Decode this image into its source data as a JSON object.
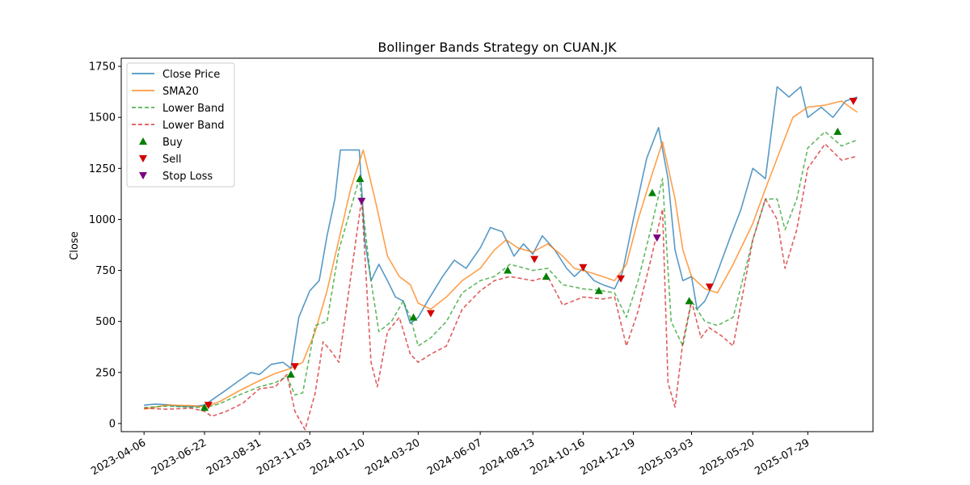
{
  "chart_data": {
    "type": "line",
    "title": "Bollinger Bands Strategy on CUAN.JK",
    "xlabel": "",
    "ylabel": "Close",
    "x_ticks": [
      "2023-04-06",
      "2023-06-22",
      "2023-08-31",
      "2023-11-03",
      "2024-01-10",
      "2024-03-20",
      "2024-06-07",
      "2024-08-13",
      "2024-10-16",
      "2024-12-19",
      "2025-03-03",
      "2025-05-20",
      "2025-07-29"
    ],
    "y_ticks": [
      0,
      250,
      500,
      750,
      1000,
      1250,
      1500,
      1750
    ],
    "xlim": [
      "2023-03-08",
      "2025-10-20"
    ],
    "ylim": [
      -40,
      1790
    ],
    "grid": false,
    "legend_position": "top-left",
    "series": [
      {
        "name": "Close Price",
        "color": "#1f77b4",
        "style": "solid",
        "points": [
          [
            "2023-04-06",
            90
          ],
          [
            "2023-04-20",
            95
          ],
          [
            "2023-05-05",
            92
          ],
          [
            "2023-05-20",
            85
          ],
          [
            "2023-06-05",
            82
          ],
          [
            "2023-06-22",
            90
          ],
          [
            "2023-07-05",
            125
          ],
          [
            "2023-07-20",
            165
          ],
          [
            "2023-08-05",
            210
          ],
          [
            "2023-08-20",
            250
          ],
          [
            "2023-08-31",
            240
          ],
          [
            "2023-09-15",
            290
          ],
          [
            "2023-09-30",
            300
          ],
          [
            "2023-10-10",
            270
          ],
          [
            "2023-10-20",
            520
          ],
          [
            "2023-11-03",
            650
          ],
          [
            "2023-11-15",
            700
          ],
          [
            "2023-11-25",
            920
          ],
          [
            "2023-12-05",
            1100
          ],
          [
            "2023-12-12",
            1340
          ],
          [
            "2024-01-05",
            1340
          ],
          [
            "2024-01-12",
            900
          ],
          [
            "2024-01-20",
            700
          ],
          [
            "2024-01-30",
            780
          ],
          [
            "2024-02-10",
            700
          ],
          [
            "2024-02-20",
            620
          ],
          [
            "2024-03-01",
            600
          ],
          [
            "2024-03-10",
            490
          ],
          [
            "2024-03-20",
            520
          ],
          [
            "2024-04-01",
            600
          ],
          [
            "2024-04-20",
            720
          ],
          [
            "2024-05-05",
            800
          ],
          [
            "2024-05-20",
            760
          ],
          [
            "2024-06-07",
            860
          ],
          [
            "2024-06-20",
            960
          ],
          [
            "2024-07-05",
            940
          ],
          [
            "2024-07-20",
            820
          ],
          [
            "2024-08-01",
            880
          ],
          [
            "2024-08-13",
            830
          ],
          [
            "2024-08-25",
            920
          ],
          [
            "2024-09-10",
            850
          ],
          [
            "2024-09-25",
            760
          ],
          [
            "2024-10-05",
            720
          ],
          [
            "2024-10-16",
            760
          ],
          [
            "2024-10-30",
            700
          ],
          [
            "2024-11-10",
            680
          ],
          [
            "2024-11-25",
            660
          ],
          [
            "2024-12-05",
            740
          ],
          [
            "2024-12-19",
            1000
          ],
          [
            "2025-01-05",
            1300
          ],
          [
            "2025-01-20",
            1450
          ],
          [
            "2025-02-01",
            1200
          ],
          [
            "2025-02-10",
            850
          ],
          [
            "2025-02-20",
            700
          ],
          [
            "2025-03-03",
            720
          ],
          [
            "2025-03-10",
            560
          ],
          [
            "2025-03-20",
            600
          ],
          [
            "2025-04-01",
            700
          ],
          [
            "2025-04-20",
            900
          ],
          [
            "2025-05-05",
            1050
          ],
          [
            "2025-05-20",
            1250
          ],
          [
            "2025-06-05",
            1200
          ],
          [
            "2025-06-20",
            1650
          ],
          [
            "2025-07-05",
            1600
          ],
          [
            "2025-07-20",
            1650
          ],
          [
            "2025-07-29",
            1500
          ],
          [
            "2025-08-15",
            1550
          ],
          [
            "2025-08-30",
            1500
          ],
          [
            "2025-09-15",
            1580
          ],
          [
            "2025-09-30",
            1600
          ]
        ]
      },
      {
        "name": "SMA20",
        "color": "#ff7f0e",
        "style": "solid",
        "points": [
          [
            "2023-04-06",
            70
          ],
          [
            "2023-05-05",
            90
          ],
          [
            "2023-06-05",
            88
          ],
          [
            "2023-06-22",
            82
          ],
          [
            "2023-07-10",
            105
          ],
          [
            "2023-08-05",
            160
          ],
          [
            "2023-08-31",
            210
          ],
          [
            "2023-09-20",
            245
          ],
          [
            "2023-10-10",
            270
          ],
          [
            "2023-10-25",
            300
          ],
          [
            "2023-11-10",
            450
          ],
          [
            "2023-11-25",
            650
          ],
          [
            "2023-12-10",
            900
          ],
          [
            "2023-12-25",
            1150
          ],
          [
            "2024-01-10",
            1340
          ],
          [
            "2024-01-25",
            1100
          ],
          [
            "2024-02-10",
            820
          ],
          [
            "2024-02-25",
            720
          ],
          [
            "2024-03-10",
            680
          ],
          [
            "2024-03-20",
            590
          ],
          [
            "2024-04-05",
            560
          ],
          [
            "2024-04-25",
            620
          ],
          [
            "2024-05-15",
            700
          ],
          [
            "2024-06-07",
            760
          ],
          [
            "2024-06-25",
            850
          ],
          [
            "2024-07-10",
            900
          ],
          [
            "2024-07-25",
            860
          ],
          [
            "2024-08-13",
            840
          ],
          [
            "2024-09-01",
            880
          ],
          [
            "2024-09-20",
            820
          ],
          [
            "2024-10-05",
            760
          ],
          [
            "2024-10-25",
            740
          ],
          [
            "2024-11-10",
            720
          ],
          [
            "2024-11-25",
            700
          ],
          [
            "2024-12-10",
            780
          ],
          [
            "2024-12-25",
            1000
          ],
          [
            "2025-01-10",
            1200
          ],
          [
            "2025-01-25",
            1380
          ],
          [
            "2025-02-10",
            1100
          ],
          [
            "2025-02-20",
            850
          ],
          [
            "2025-03-03",
            720
          ],
          [
            "2025-03-20",
            660
          ],
          [
            "2025-04-05",
            640
          ],
          [
            "2025-04-25",
            780
          ],
          [
            "2025-05-20",
            980
          ],
          [
            "2025-06-05",
            1150
          ],
          [
            "2025-06-25",
            1350
          ],
          [
            "2025-07-10",
            1500
          ],
          [
            "2025-07-29",
            1550
          ],
          [
            "2025-08-20",
            1560
          ],
          [
            "2025-09-10",
            1580
          ],
          [
            "2025-09-30",
            1525
          ]
        ]
      },
      {
        "name": "Lower Band",
        "color": "#2ca02c",
        "style": "dashed",
        "points": [
          [
            "2023-04-06",
            78
          ],
          [
            "2023-05-05",
            85
          ],
          [
            "2023-06-05",
            80
          ],
          [
            "2023-06-22",
            78
          ],
          [
            "2023-07-10",
            95
          ],
          [
            "2023-08-05",
            140
          ],
          [
            "2023-08-31",
            180
          ],
          [
            "2023-09-20",
            200
          ],
          [
            "2023-10-05",
            230
          ],
          [
            "2023-10-15",
            140
          ],
          [
            "2023-10-25",
            150
          ],
          [
            "2023-11-10",
            480
          ],
          [
            "2023-11-25",
            500
          ],
          [
            "2023-12-10",
            850
          ],
          [
            "2024-01-05",
            1200
          ],
          [
            "2024-01-20",
            700
          ],
          [
            "2024-01-30",
            450
          ],
          [
            "2024-02-15",
            500
          ],
          [
            "2024-03-01",
            600
          ],
          [
            "2024-03-10",
            520
          ],
          [
            "2024-03-20",
            380
          ],
          [
            "2024-04-05",
            420
          ],
          [
            "2024-04-25",
            500
          ],
          [
            "2024-05-15",
            640
          ],
          [
            "2024-06-07",
            700
          ],
          [
            "2024-06-25",
            720
          ],
          [
            "2024-07-15",
            780
          ],
          [
            "2024-08-13",
            750
          ],
          [
            "2024-09-01",
            760
          ],
          [
            "2024-09-20",
            680
          ],
          [
            "2024-10-16",
            660
          ],
          [
            "2024-11-10",
            650
          ],
          [
            "2024-11-25",
            640
          ],
          [
            "2024-12-10",
            520
          ],
          [
            "2024-12-25",
            700
          ],
          [
            "2025-01-10",
            950
          ],
          [
            "2025-01-25",
            1200
          ],
          [
            "2025-02-05",
            500
          ],
          [
            "2025-02-20",
            380
          ],
          [
            "2025-03-03",
            600
          ],
          [
            "2025-03-20",
            500
          ],
          [
            "2025-04-05",
            480
          ],
          [
            "2025-04-25",
            520
          ],
          [
            "2025-05-20",
            900
          ],
          [
            "2025-06-05",
            1100
          ],
          [
            "2025-06-20",
            1100
          ],
          [
            "2025-06-30",
            950
          ],
          [
            "2025-07-15",
            1100
          ],
          [
            "2025-07-29",
            1350
          ],
          [
            "2025-08-20",
            1430
          ],
          [
            "2025-09-10",
            1360
          ],
          [
            "2025-09-30",
            1390
          ]
        ]
      },
      {
        "name": "Lower Band",
        "color": "#d62728",
        "style": "dashed",
        "points": [
          [
            "2023-04-06",
            75
          ],
          [
            "2023-05-05",
            70
          ],
          [
            "2023-06-05",
            75
          ],
          [
            "2023-06-22",
            60
          ],
          [
            "2023-07-01",
            35
          ],
          [
            "2023-07-20",
            60
          ],
          [
            "2023-08-10",
            100
          ],
          [
            "2023-08-31",
            170
          ],
          [
            "2023-09-20",
            180
          ],
          [
            "2023-10-05",
            240
          ],
          [
            "2023-10-15",
            60
          ],
          [
            "2023-10-28",
            -30
          ],
          [
            "2023-11-10",
            150
          ],
          [
            "2023-11-20",
            400
          ],
          [
            "2023-12-01",
            350
          ],
          [
            "2023-12-10",
            300
          ],
          [
            "2024-01-08",
            1100
          ],
          [
            "2024-01-20",
            300
          ],
          [
            "2024-01-28",
            180
          ],
          [
            "2024-02-10",
            450
          ],
          [
            "2024-02-25",
            520
          ],
          [
            "2024-03-10",
            340
          ],
          [
            "2024-03-20",
            300
          ],
          [
            "2024-04-05",
            340
          ],
          [
            "2024-04-25",
            380
          ],
          [
            "2024-05-15",
            560
          ],
          [
            "2024-06-07",
            650
          ],
          [
            "2024-06-25",
            700
          ],
          [
            "2024-07-15",
            720
          ],
          [
            "2024-08-13",
            700
          ],
          [
            "2024-09-01",
            720
          ],
          [
            "2024-09-20",
            580
          ],
          [
            "2024-10-16",
            620
          ],
          [
            "2024-11-10",
            610
          ],
          [
            "2024-11-25",
            620
          ],
          [
            "2024-12-10",
            380
          ],
          [
            "2024-12-25",
            550
          ],
          [
            "2025-01-10",
            800
          ],
          [
            "2025-01-25",
            1050
          ],
          [
            "2025-02-01",
            200
          ],
          [
            "2025-02-10",
            80
          ],
          [
            "2025-02-20",
            400
          ],
          [
            "2025-03-03",
            600
          ],
          [
            "2025-03-15",
            420
          ],
          [
            "2025-03-25",
            470
          ],
          [
            "2025-04-10",
            430
          ],
          [
            "2025-04-25",
            380
          ],
          [
            "2025-05-20",
            900
          ],
          [
            "2025-06-05",
            1100
          ],
          [
            "2025-06-20",
            1000
          ],
          [
            "2025-06-30",
            760
          ],
          [
            "2025-07-15",
            950
          ],
          [
            "2025-07-29",
            1250
          ],
          [
            "2025-08-20",
            1370
          ],
          [
            "2025-09-10",
            1290
          ],
          [
            "2025-09-30",
            1310
          ]
        ]
      }
    ],
    "markers": [
      {
        "name": "Buy",
        "color": "#008000",
        "shape": "triangle-up",
        "points": [
          [
            "2023-06-22",
            78
          ],
          [
            "2023-10-10",
            240
          ],
          [
            "2024-01-06",
            1200
          ],
          [
            "2024-03-14",
            520
          ],
          [
            "2024-07-12",
            750
          ],
          [
            "2024-08-30",
            720
          ],
          [
            "2024-11-05",
            650
          ],
          [
            "2025-01-12",
            1130
          ],
          [
            "2025-02-28",
            600
          ],
          [
            "2025-09-05",
            1430
          ]
        ]
      },
      {
        "name": "Sell",
        "color": "#d40000",
        "shape": "triangle-down",
        "points": [
          [
            "2023-06-27",
            90
          ],
          [
            "2023-10-15",
            280
          ],
          [
            "2024-04-05",
            540
          ],
          [
            "2024-08-15",
            805
          ],
          [
            "2024-10-16",
            765
          ],
          [
            "2024-12-03",
            710
          ],
          [
            "2025-03-26",
            670
          ],
          [
            "2025-09-25",
            1580
          ]
        ]
      },
      {
        "name": "Stop Loss",
        "color": "#7a0080",
        "shape": "triangle-down",
        "points": [
          [
            "2024-01-08",
            1090
          ],
          [
            "2025-01-18",
            910
          ]
        ]
      }
    ]
  }
}
